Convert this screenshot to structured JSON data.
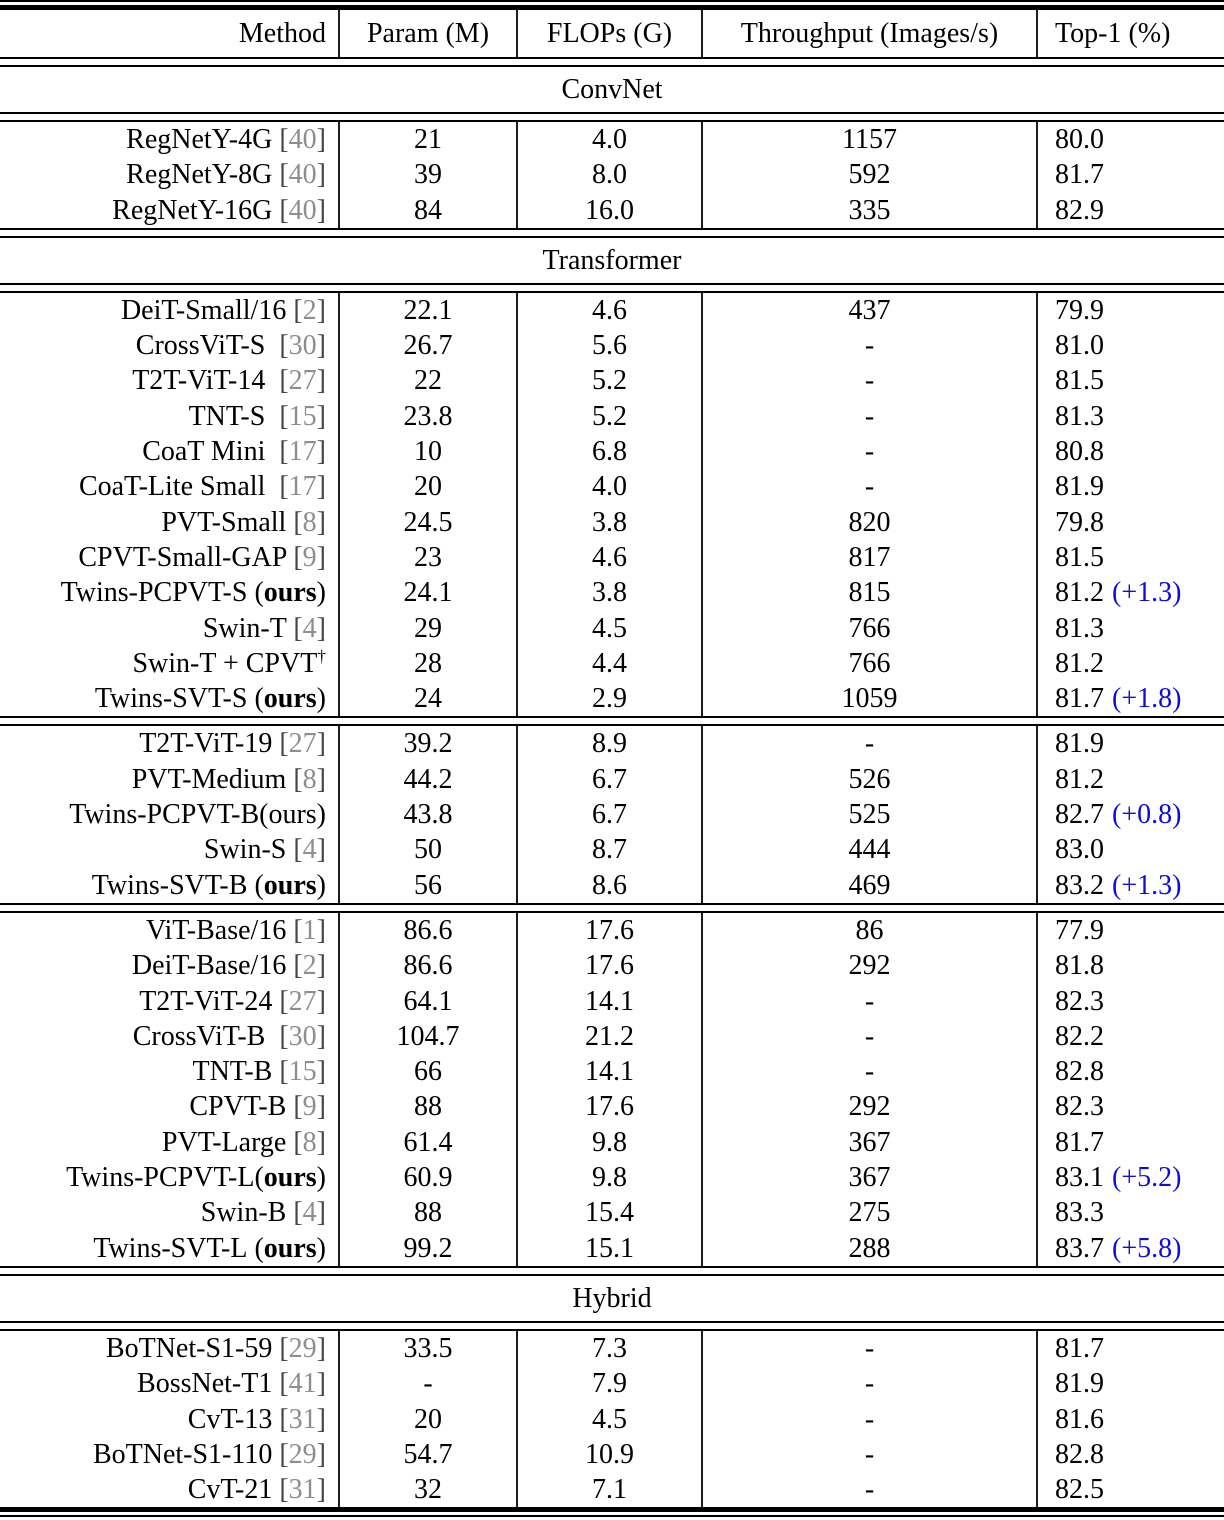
{
  "table": {
    "columns": [
      "Method",
      "Param (M)",
      "FLOPs (G)",
      "Throughput (Images/s)",
      "Top-1 (%)"
    ],
    "cite_open": "[",
    "cite_close": "]",
    "ours": {
      "open": "(",
      "word": "ours",
      "close": ")"
    },
    "colors": {
      "citation_gray": "#8e8e8e",
      "gain_blue": "#0c0ce0",
      "rule_black": "#000000"
    },
    "sections": [
      {
        "label": "ConvNet",
        "groups": [
          {
            "rows": [
              {
                "m": "RegNetY-4G",
                "cite": "40",
                "param": "21",
                "flops": "4.0",
                "thr": "1157",
                "top1": "80.0"
              },
              {
                "m": "RegNetY-8G",
                "cite": "40",
                "param": "39",
                "flops": "8.0",
                "thr": "592",
                "top1": "81.7"
              },
              {
                "m": "RegNetY-16G",
                "cite": "40",
                "param": "84",
                "flops": "16.0",
                "thr": "335",
                "top1": "82.9"
              }
            ]
          }
        ]
      },
      {
        "label": "Transformer",
        "groups": [
          {
            "rows": [
              {
                "m": "DeiT-Small/16",
                "cite": "2",
                "param": "22.1",
                "flops": "4.6",
                "thr": "437",
                "top1": "79.9"
              },
              {
                "m": "CrossViT-S ",
                "cite": "30",
                "param": "26.7",
                "flops": "5.6",
                "thr": "-",
                "top1": "81.0"
              },
              {
                "m": "T2T-ViT-14 ",
                "cite": "27",
                "param": "22",
                "flops": "5.2",
                "thr": "-",
                "top1": "81.5"
              },
              {
                "m": "TNT-S ",
                "cite": "15",
                "param": "23.8",
                "flops": "5.2",
                "thr": "-",
                "top1": "81.3"
              },
              {
                "m": "CoaT Mini ",
                "cite": "17",
                "param": "10",
                "flops": "6.8",
                "thr": "-",
                "top1": "80.8"
              },
              {
                "m": "CoaT-Lite Small ",
                "cite": "17",
                "param": "20",
                "flops": "4.0",
                "thr": "-",
                "top1": "81.9"
              },
              {
                "m": "PVT-Small",
                "cite": "8",
                "param": "24.5",
                "flops": "3.8",
                "thr": "820",
                "top1": "79.8"
              },
              {
                "m": "CPVT-Small-GAP",
                "cite": "9",
                "param": "23",
                "flops": "4.6",
                "thr": "817",
                "top1": "81.5"
              },
              {
                "m": "Twins-PCPVT-S",
                "ours": "space",
                "param": "24.1",
                "flops": "3.8",
                "thr": "815",
                "top1": "81.2",
                "gain": "(+1.3)"
              },
              {
                "m": "Swin-T",
                "cite": "4",
                "param": "29",
                "flops": "4.5",
                "thr": "766",
                "top1": "81.3"
              },
              {
                "m": "Swin-T + CPVT",
                "sup": "†",
                "param": "28",
                "flops": "4.4",
                "thr": "766",
                "top1": "81.2"
              },
              {
                "m": "Twins-SVT-S",
                "ours": "space",
                "param": "24",
                "flops": "2.9",
                "thr": "1059",
                "top1": "81.7",
                "gain": "(+1.8)"
              }
            ]
          },
          {
            "rows": [
              {
                "m": "T2T-ViT-19",
                "cite": "27",
                "param": "39.2",
                "flops": "8.9",
                "thr": "-",
                "top1": "81.9"
              },
              {
                "m": "PVT-Medium",
                "cite": "8",
                "param": "44.2",
                "flops": "6.7",
                "thr": "526",
                "top1": "81.2"
              },
              {
                "m": "Twins-PCPVT-B(ours)",
                "param": "43.8",
                "flops": "6.7",
                "thr": "525",
                "top1": "82.7",
                "gain": "(+0.8)"
              },
              {
                "m": "Swin-S",
                "cite": "4",
                "param": "50",
                "flops": "8.7",
                "thr": "444",
                "top1": "83.0"
              },
              {
                "m": "Twins-SVT-B",
                "ours": "space",
                "param": "56",
                "flops": "8.6",
                "thr": "469",
                "top1": "83.2",
                "gain": "(+1.3)"
              }
            ]
          },
          {
            "rows": [
              {
                "m": "ViT-Base/16",
                "cite": "1",
                "param": "86.6",
                "flops": "17.6",
                "thr": "86",
                "top1": "77.9"
              },
              {
                "m": "DeiT-Base/16",
                "cite": "2",
                "param": "86.6",
                "flops": "17.6",
                "thr": "292",
                "top1": "81.8"
              },
              {
                "m": "T2T-ViT-24",
                "cite": "27",
                "param": "64.1",
                "flops": "14.1",
                "thr": "-",
                "top1": "82.3"
              },
              {
                "m": "CrossViT-B ",
                "cite": "30",
                "param": "104.7",
                "flops": "21.2",
                "thr": "-",
                "top1": "82.2"
              },
              {
                "m": "TNT-B",
                "cite": "15",
                "param": "66",
                "flops": "14.1",
                "thr": "-",
                "top1": "82.8"
              },
              {
                "m": "CPVT-B",
                "cite": "9",
                "param": "88",
                "flops": "17.6",
                "thr": "292",
                "top1": "82.3"
              },
              {
                "m": "PVT-Large",
                "cite": "8",
                "param": "61.4",
                "flops": "9.8",
                "thr": "367",
                "top1": "81.7"
              },
              {
                "m": "Twins-PCPVT-L",
                "ours": "nospace",
                "param": "60.9",
                "flops": "9.8",
                "thr": "367",
                "top1": "83.1",
                "gain": "(+5.2)"
              },
              {
                "m": "Swin-B",
                "cite": "4",
                "param": "88",
                "flops": "15.4",
                "thr": "275",
                "top1": "83.3"
              },
              {
                "m": "Twins-SVT-L",
                "ours": "space",
                "param": "99.2",
                "flops": "15.1",
                "thr": "288",
                "top1": "83.7",
                "gain": "(+5.8)"
              }
            ]
          }
        ]
      },
      {
        "label": "Hybrid",
        "groups": [
          {
            "rows": [
              {
                "m": "BoTNet-S1-59",
                "cite": "29",
                "param": "33.5",
                "flops": "7.3",
                "thr": "-",
                "top1": "81.7"
              },
              {
                "m": "BossNet-T1",
                "cite": "41",
                "param": "-",
                "flops": "7.9",
                "thr": "-",
                "top1": "81.9"
              },
              {
                "m": "CvT-13",
                "cite": "31",
                "param": "20",
                "flops": "4.5",
                "thr": "-",
                "top1": "81.6"
              },
              {
                "m": "BoTNet-S1-110",
                "cite": "29",
                "param": "54.7",
                "flops": "10.9",
                "thr": "-",
                "top1": "82.8"
              },
              {
                "m": "CvT-21",
                "cite": "31",
                "param": "32",
                "flops": "7.1",
                "thr": "-",
                "top1": "82.5"
              }
            ]
          }
        ]
      }
    ]
  }
}
